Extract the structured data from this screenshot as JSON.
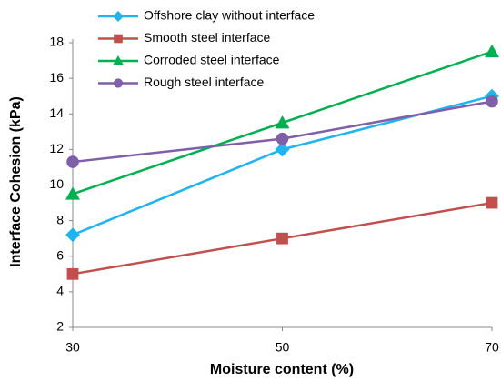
{
  "chart_data": {
    "type": "line",
    "x_label": "Moisture content (%)",
    "y_label": "Interface Cohesion (kPa)",
    "x": [
      30,
      50,
      70
    ],
    "xlim": [
      30,
      70
    ],
    "xticks": [
      30,
      50,
      70
    ],
    "ylim": [
      2,
      18
    ],
    "yticks": [
      2,
      4,
      6,
      8,
      10,
      12,
      14,
      16,
      18
    ],
    "series": [
      {
        "name": "Offshore clay without interface",
        "color": "#1fb4f0",
        "marker": "diamond",
        "values": [
          7.2,
          12,
          15
        ]
      },
      {
        "name": "Smooth steel interface",
        "color": "#c0504d",
        "marker": "square",
        "values": [
          5,
          7,
          9
        ]
      },
      {
        "name": "Corroded steel interface",
        "color": "#00b050",
        "marker": "triangle",
        "values": [
          9.5,
          13.5,
          17.5
        ]
      },
      {
        "name": "Rough steel interface",
        "color": "#7f5fa8",
        "marker": "circle",
        "values": [
          11.3,
          12.6,
          14.7
        ]
      }
    ]
  }
}
